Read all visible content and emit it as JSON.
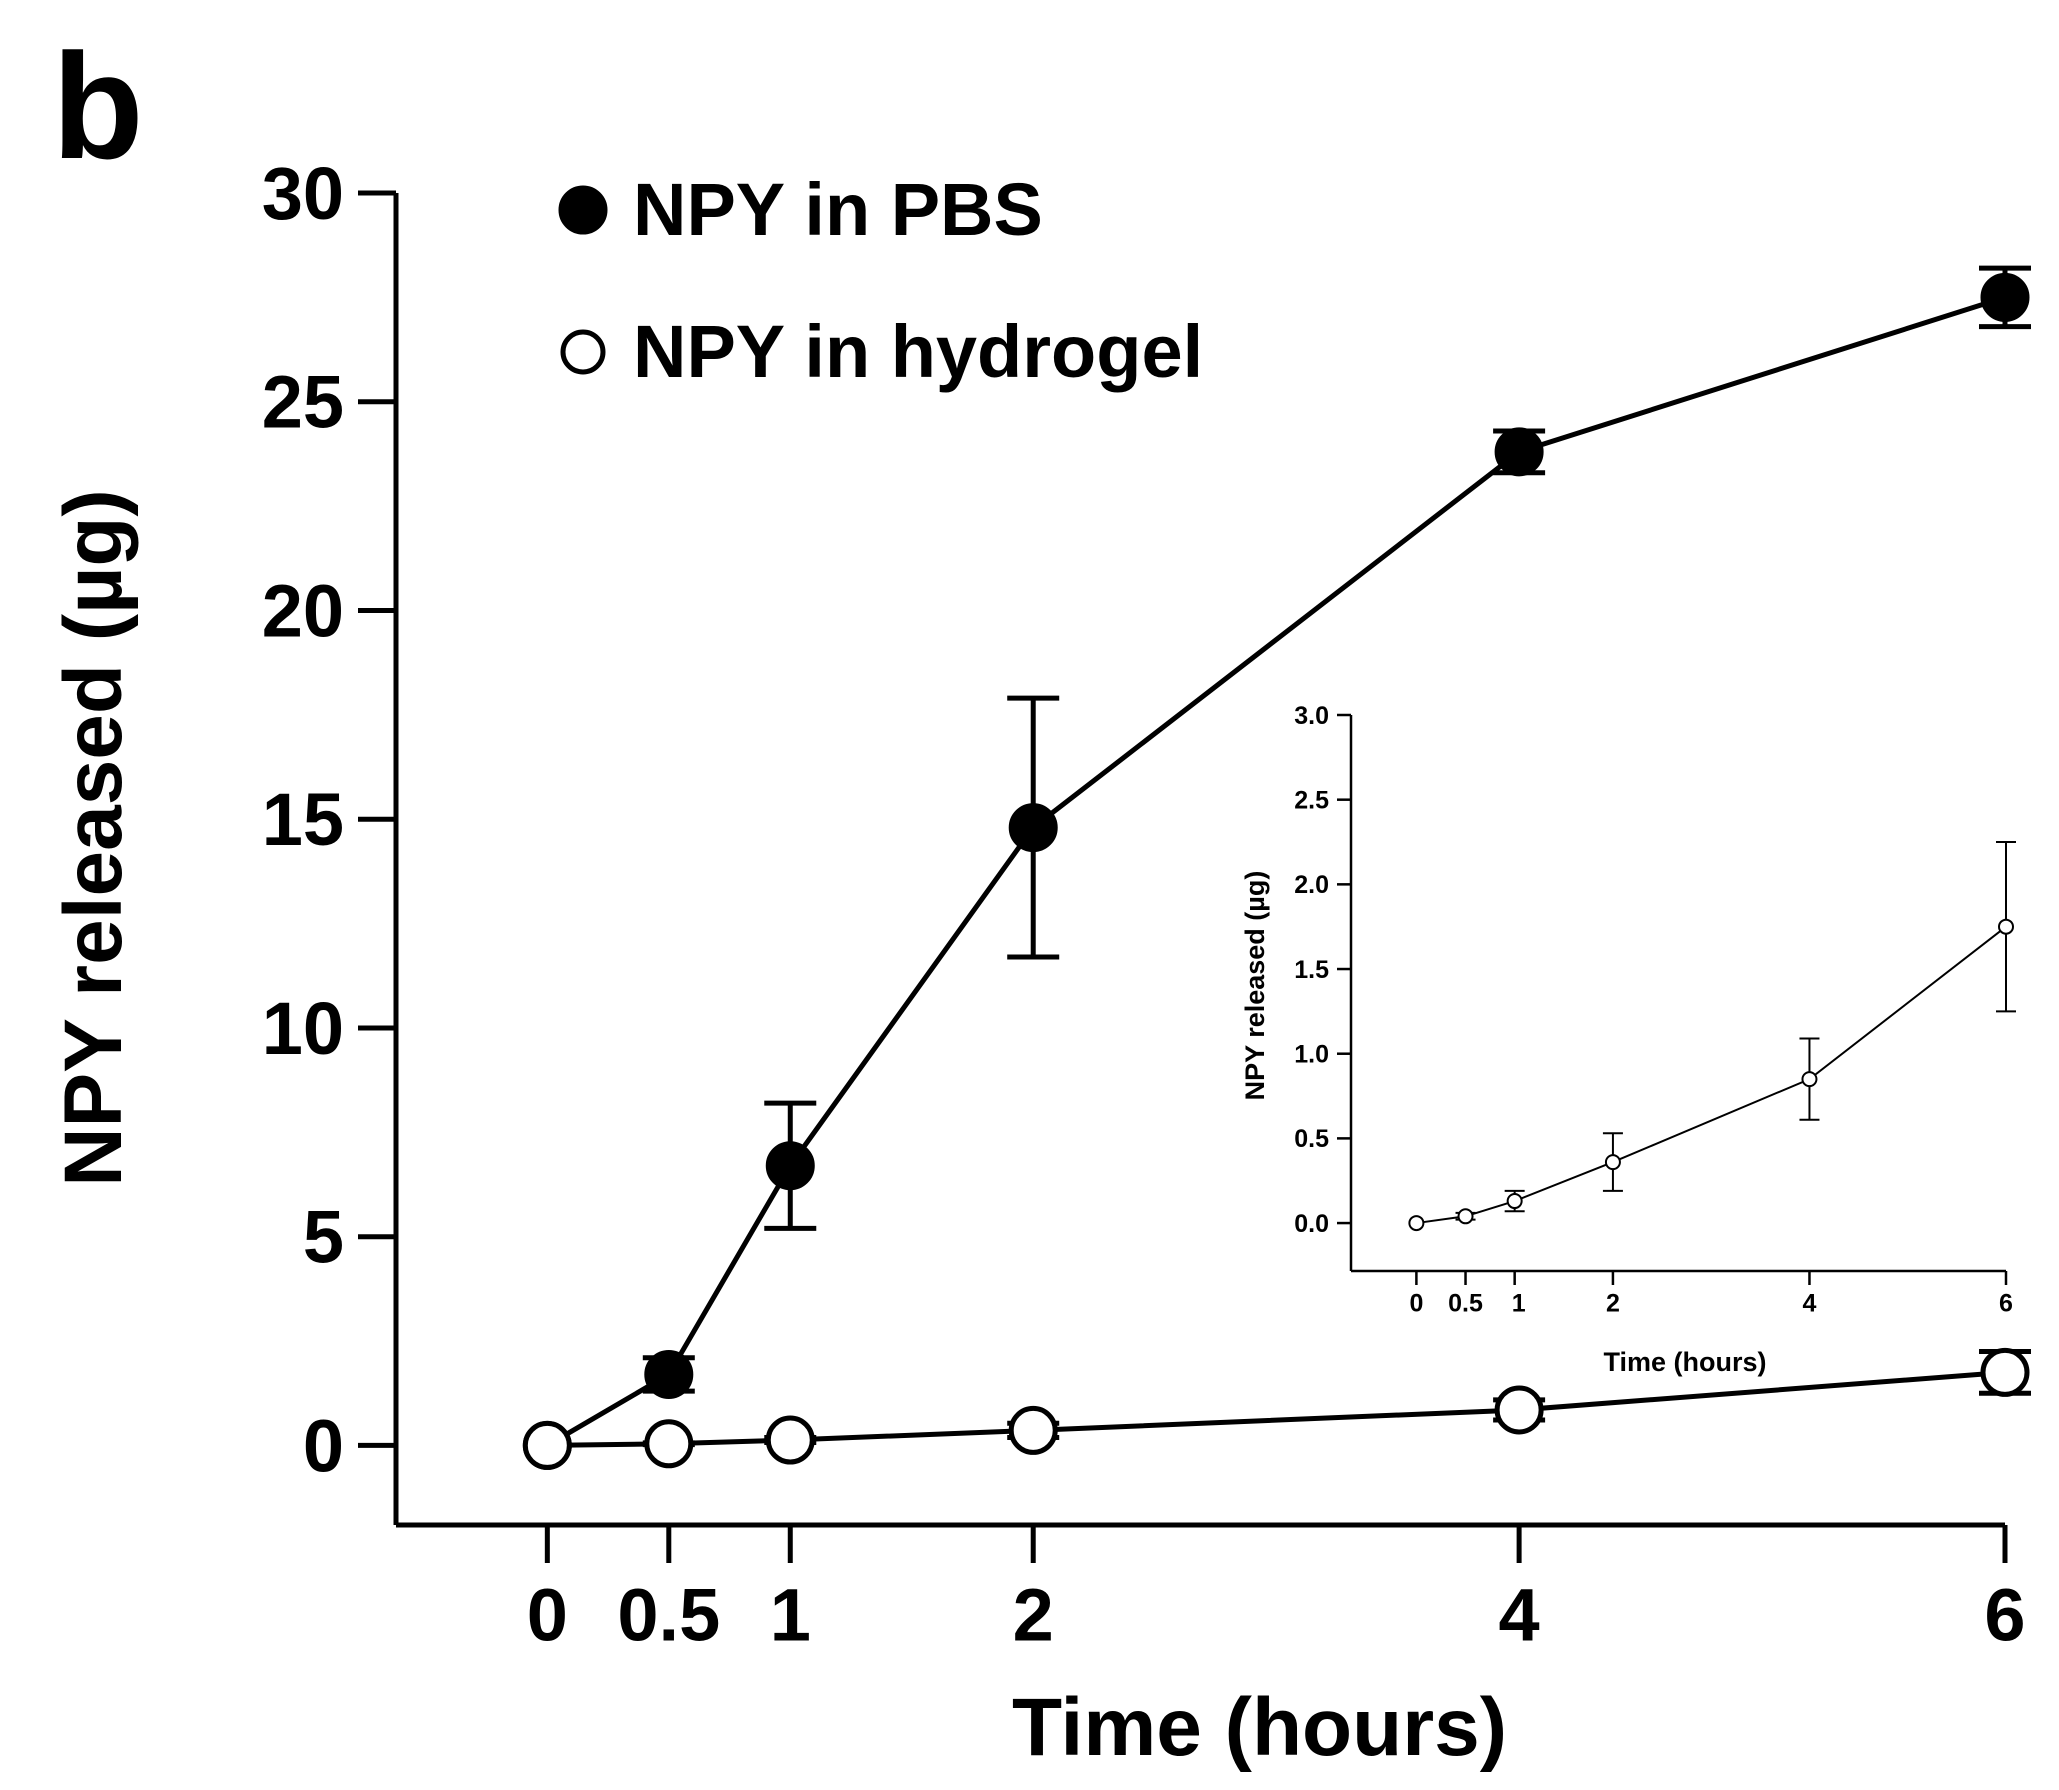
{
  "panel_label": "b",
  "chart_data": [
    {
      "id": "main",
      "type": "line",
      "title": "",
      "xlabel": "Time (hours)",
      "ylabel": "NPY released (µg)",
      "x": [
        0,
        0.5,
        1,
        2,
        4,
        6
      ],
      "x_tick_labels": [
        "0",
        "0.5",
        "1",
        "2",
        "4",
        "6"
      ],
      "y_ticks": [
        0,
        5,
        10,
        15,
        20,
        25,
        30
      ],
      "y_tick_labels": [
        "0",
        "5",
        "10",
        "15",
        "20",
        "25",
        "30"
      ],
      "xlim": [
        -0.45,
        6
      ],
      "ylim": [
        -0.9,
        30
      ],
      "grid": false,
      "legend": {
        "placement": "top-left",
        "entries": [
          "NPY in PBS",
          "NPY in hydrogel"
        ]
      },
      "series": [
        {
          "name": "NPY in PBS",
          "marker": "filled-circle",
          "color": "#000000",
          "values": [
            0,
            1.7,
            6.7,
            14.8,
            23.8,
            27.5
          ],
          "error": [
            0,
            0.4,
            1.5,
            3.1,
            0.5,
            0.7
          ]
        },
        {
          "name": "NPY in hydrogel",
          "marker": "open-circle",
          "color": "#000000",
          "values": [
            0,
            0.04,
            0.13,
            0.36,
            0.85,
            1.75
          ],
          "error": [
            0,
            0.02,
            0.06,
            0.17,
            0.24,
            0.5
          ]
        }
      ]
    },
    {
      "id": "inset",
      "type": "line",
      "title": "",
      "xlabel": "Time (hours)",
      "ylabel": "NPY released (µg)",
      "x": [
        0,
        0.5,
        1,
        2,
        4,
        6
      ],
      "x_tick_labels": [
        "0",
        "0.5",
        "1",
        "2",
        "4",
        "6"
      ],
      "y_ticks": [
        0,
        0.5,
        1.0,
        1.5,
        2.0,
        2.5,
        3.0
      ],
      "y_tick_labels": [
        "0.0",
        "0.5",
        "1.0",
        "1.5",
        "2.0",
        "2.5",
        "3.0"
      ],
      "xlim": [
        -0.35,
        6
      ],
      "ylim": [
        -0.1,
        3.0
      ],
      "grid": false,
      "series": [
        {
          "name": "NPY in hydrogel",
          "marker": "open-circle",
          "color": "#000000",
          "values": [
            0,
            0.04,
            0.13,
            0.36,
            0.85,
            1.75
          ],
          "error": [
            0,
            0.02,
            0.06,
            0.17,
            0.24,
            0.5
          ]
        }
      ]
    }
  ]
}
